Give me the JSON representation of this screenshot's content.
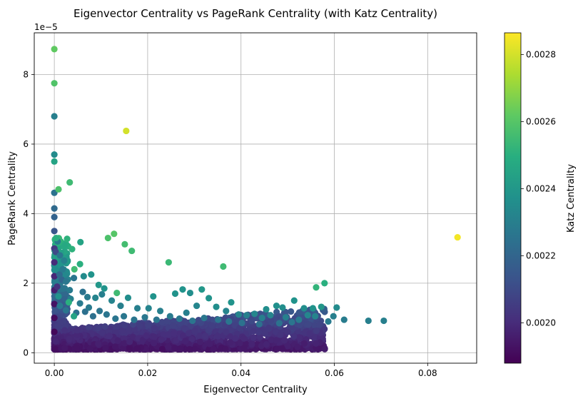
{
  "chart_data": {
    "type": "scatter",
    "title": "Eigenvector Centrality vs PageRank Centrality (with Katz Centrality)",
    "xlabel": "Eigenvector Centrality",
    "ylabel": "PageRank Centrality",
    "y_offset_label": "1e−5",
    "colorbar_label": "Katz Centrality",
    "colormap": "viridis",
    "grid": true,
    "xlim": [
      -0.0043,
      0.0905
    ],
    "ylim": [
      -0.3,
      9.2
    ],
    "x_ticks": [
      0.0,
      0.02,
      0.04,
      0.06,
      0.08
    ],
    "x_tick_labels": [
      "0.00",
      "0.02",
      "0.04",
      "0.06",
      "0.08"
    ],
    "y_ticks": [
      0,
      2,
      4,
      6,
      8
    ],
    "y_tick_labels": [
      "0",
      "2",
      "4",
      "6",
      "8"
    ],
    "color_range": [
      0.00188,
      0.002865
    ],
    "colorbar_ticks": [
      0.002,
      0.0022,
      0.0024,
      0.0026,
      0.0028
    ],
    "colorbar_tick_labels": [
      "0.0020",
      "0.0022",
      "0.0024",
      "0.0026",
      "0.0028"
    ],
    "points": [
      [
        0.0,
        8.73,
        0.00262
      ],
      [
        0.0,
        7.75,
        0.00259
      ],
      [
        0.0,
        6.8,
        0.0023
      ],
      [
        0.0,
        5.7,
        0.00235
      ],
      [
        0.0,
        5.5,
        0.00245
      ],
      [
        0.0,
        4.6,
        0.00225
      ],
      [
        0.0,
        4.15,
        0.00222
      ],
      [
        0.0,
        3.9,
        0.00219
      ],
      [
        0.0,
        3.5,
        0.00214
      ],
      [
        0.0,
        3.0,
        0.00205
      ],
      [
        0.0,
        2.6,
        0.002
      ],
      [
        0.0,
        2.2,
        0.00199
      ],
      [
        0.0,
        1.8,
        0.00196
      ],
      [
        0.0,
        1.4,
        0.00193
      ],
      [
        0.0,
        1.0,
        0.00191
      ],
      [
        0.0,
        0.6,
        0.0019
      ],
      [
        0.0003,
        2.9,
        0.0021
      ],
      [
        0.0004,
        3.3,
        0.0025
      ],
      [
        0.0006,
        1.9,
        0.00202
      ],
      [
        0.0009,
        4.7,
        0.00258
      ],
      [
        0.0033,
        4.9,
        0.00255
      ],
      [
        0.0154,
        6.38,
        0.0028
      ],
      [
        0.0864,
        3.32,
        0.00285
      ],
      [
        0.0056,
        3.18,
        0.00245
      ],
      [
        0.0038,
        2.98,
        0.00251
      ],
      [
        0.0115,
        3.3,
        0.00258
      ],
      [
        0.0128,
        3.42,
        0.0026
      ],
      [
        0.0151,
        3.12,
        0.00256
      ],
      [
        0.0166,
        2.93,
        0.00255
      ],
      [
        0.0055,
        2.55,
        0.0025
      ],
      [
        0.0043,
        2.4,
        0.00255
      ],
      [
        0.0245,
        2.6,
        0.00254
      ],
      [
        0.0362,
        2.48,
        0.00255
      ],
      [
        0.0579,
        2.0,
        0.0025
      ],
      [
        0.0561,
        1.88,
        0.00252
      ],
      [
        0.0134,
        1.72,
        0.00255
      ],
      [
        0.0009,
        1.62,
        0.00238
      ],
      [
        0.0031,
        1.45,
        0.0025
      ],
      [
        0.0042,
        1.05,
        0.00245
      ],
      [
        0.0016,
        2.1,
        0.0022
      ],
      [
        0.0021,
        2.65,
        0.0023
      ],
      [
        0.0035,
        1.55,
        0.0023
      ],
      [
        0.0673,
        0.92,
        0.0023
      ],
      [
        0.0706,
        0.92,
        0.0023
      ],
      [
        0.0621,
        0.95,
        0.00229
      ],
      [
        0.0605,
        1.3,
        0.00235
      ],
      [
        0.0587,
        0.9,
        0.00228
      ],
      [
        0.0598,
        1.05,
        0.0023
      ],
      [
        0.0489,
        1.3,
        0.00236
      ],
      [
        0.0514,
        1.5,
        0.00238
      ],
      [
        0.0476,
        1.35,
        0.00237
      ],
      [
        0.0379,
        1.45,
        0.00238
      ],
      [
        0.0275,
        1.82,
        0.00238
      ],
      [
        0.0316,
        1.82,
        0.0024
      ],
      [
        0.0291,
        1.72,
        0.00236
      ],
      [
        0.0212,
        1.62,
        0.00238
      ],
      [
        0.0095,
        1.95,
        0.0024
      ],
      [
        0.0079,
        2.25,
        0.00238
      ],
      [
        0.0063,
        2.2,
        0.00235
      ],
      [
        0.0554,
        1.28,
        0.00238
      ],
      [
        0.0572,
        1.32,
        0.0024
      ],
      [
        0.0535,
        1.28,
        0.00236
      ],
      [
        0.0543,
        1.08,
        0.00233
      ],
      [
        0.0559,
        1.05,
        0.00232
      ],
      [
        0.0454,
        1.25,
        0.00236
      ],
      [
        0.0331,
        1.57,
        0.00238
      ],
      [
        0.0347,
        1.32,
        0.00236
      ],
      [
        0.0259,
        1.7,
        0.00238
      ],
      [
        0.0158,
        1.58,
        0.00236
      ],
      [
        0.0107,
        1.85,
        0.00238
      ],
      [
        0.0202,
        1.28,
        0.00232
      ],
      [
        0.0012,
        1.35,
        0.00228
      ],
      [
        0.0025,
        1.22,
        0.00226
      ],
      [
        0.0047,
        1.15,
        0.00224
      ],
      [
        0.0074,
        1.3,
        0.00228
      ],
      [
        0.0088,
        1.58,
        0.00232
      ],
      [
        0.0123,
        1.5,
        0.00232
      ],
      [
        0.0142,
        1.35,
        0.0023
      ],
      [
        0.0178,
        1.28,
        0.0023
      ],
      [
        0.0227,
        1.2,
        0.0023
      ],
      [
        0.0283,
        1.15,
        0.0023
      ],
      [
        0.0305,
        1.35,
        0.00233
      ],
      [
        0.0368,
        1.2,
        0.00232
      ],
      [
        0.0395,
        1.1,
        0.00232
      ],
      [
        0.0412,
        1.08,
        0.0023
      ],
      [
        0.0429,
        1.12,
        0.00233
      ],
      [
        0.0445,
        1.0,
        0.0023
      ],
      [
        0.0463,
        1.08,
        0.00232
      ],
      [
        0.0496,
        1.02,
        0.0023
      ],
      [
        0.0524,
        0.95,
        0.00228
      ],
      [
        0.0509,
        0.88,
        0.00226
      ],
      [
        0.0482,
        0.85,
        0.00225
      ],
      [
        0.0439,
        0.82,
        0.00224
      ],
      [
        0.0402,
        0.86,
        0.00225
      ],
      [
        0.0374,
        0.9,
        0.00226
      ],
      [
        0.0351,
        0.95,
        0.00226
      ],
      [
        0.0321,
        1.0,
        0.00227
      ],
      [
        0.0296,
        0.92,
        0.00226
      ],
      [
        0.0268,
        0.98,
        0.00227
      ],
      [
        0.0248,
        1.05,
        0.00228
      ],
      [
        0.0219,
        0.95,
        0.00226
      ],
      [
        0.0194,
        1.02,
        0.00227
      ],
      [
        0.0171,
        0.95,
        0.00226
      ],
      [
        0.0149,
        1.05,
        0.00227
      ],
      [
        0.0131,
        0.98,
        0.00226
      ],
      [
        0.0112,
        1.1,
        0.00226
      ],
      [
        0.0097,
        1.2,
        0.00226
      ],
      [
        0.0083,
        1.05,
        0.00224
      ],
      [
        0.0066,
        1.18,
        0.00224
      ],
      [
        0.0055,
        1.42,
        0.00228
      ],
      [
        0.0033,
        1.8,
        0.00228
      ],
      [
        0.0025,
        2.05,
        0.00227
      ],
      [
        0.0018,
        2.4,
        0.00228
      ],
      [
        0.0012,
        2.8,
        0.00226
      ],
      [
        0.0007,
        3.2,
        0.00228
      ],
      [
        0.0011,
        2.25,
        0.00222
      ],
      [
        0.0042,
        2.15,
        0.00226
      ],
      [
        0.0061,
        1.75,
        0.00225
      ],
      [
        0.0071,
        1.6,
        0.00228
      ],
      [
        0.0102,
        1.68,
        0.0023
      ]
    ]
  }
}
